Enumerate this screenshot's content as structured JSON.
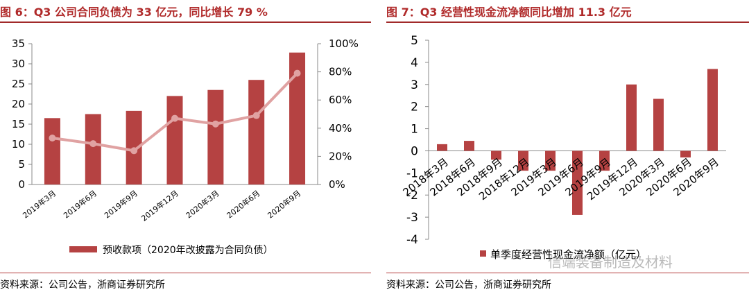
{
  "watermark": "信端装备制造及材料",
  "charts": [
    {
      "title": "图 6：Q3 公司合同负债为 33 亿元，同比增长 79 %",
      "source": "资料来源：公司公告，浙商证券研究所",
      "legend": [
        "预收款项（2020年改披露为合同负债）",
        ""
      ],
      "chart_data": {
        "type": "bar",
        "categories": [
          "2019年3月",
          "2019年6月",
          "2019年9月",
          "2019年12月",
          "2020年3月",
          "2020年6月",
          "2020年9月"
        ],
        "series": [
          {
            "name": "预收款项（2020年改披露为合同负债）",
            "type": "bar",
            "axis": "left",
            "values": [
              16.5,
              17.5,
              18.3,
              22,
              23.5,
              26,
              32.8
            ]
          },
          {
            "name": "",
            "type": "line",
            "axis": "right",
            "values": [
              33,
              29,
              24,
              47,
              43,
              49,
              79
            ]
          }
        ],
        "ylim": [
          0,
          35
        ],
        "yticks": [
          "0",
          "5",
          "10",
          "15",
          "20",
          "25",
          "30",
          "35"
        ],
        "y2lim": [
          0,
          100
        ],
        "y2ticks": [
          "0%",
          "20%",
          "40%",
          "60%",
          "80%",
          "100%"
        ],
        "colors": {
          "bar": "#b54242",
          "line": "#e0a2a2"
        }
      }
    },
    {
      "title": "图 7：Q3 经营性现金流净额同比增加 11.3 亿元",
      "source": "资料来源：公司公告，浙商证券研究所",
      "legend": [
        "单季度经营性现金流净额（亿元）"
      ],
      "chart_data": {
        "type": "bar",
        "categories": [
          "2018年3月",
          "2018年6月",
          "2018年9月",
          "2018年12月",
          "2019年3月",
          "2019年6月",
          "2019年9月",
          "2019年12月",
          "2020年3月",
          "2020年6月",
          "2020年9月"
        ],
        "series": [
          {
            "name": "单季度经营性现金流净额（亿元）",
            "values": [
              0.3,
              0.45,
              -0.4,
              -0.9,
              -0.9,
              -2.9,
              -0.9,
              3.0,
              2.35,
              -0.3,
              3.7
            ]
          }
        ],
        "ylim": [
          -4,
          5
        ],
        "yticks": [
          "5",
          "4",
          "3",
          "2",
          "1",
          "0",
          "-1",
          "-2",
          "-3",
          "-4"
        ],
        "colors": {
          "bar": "#b54242"
        }
      }
    }
  ]
}
